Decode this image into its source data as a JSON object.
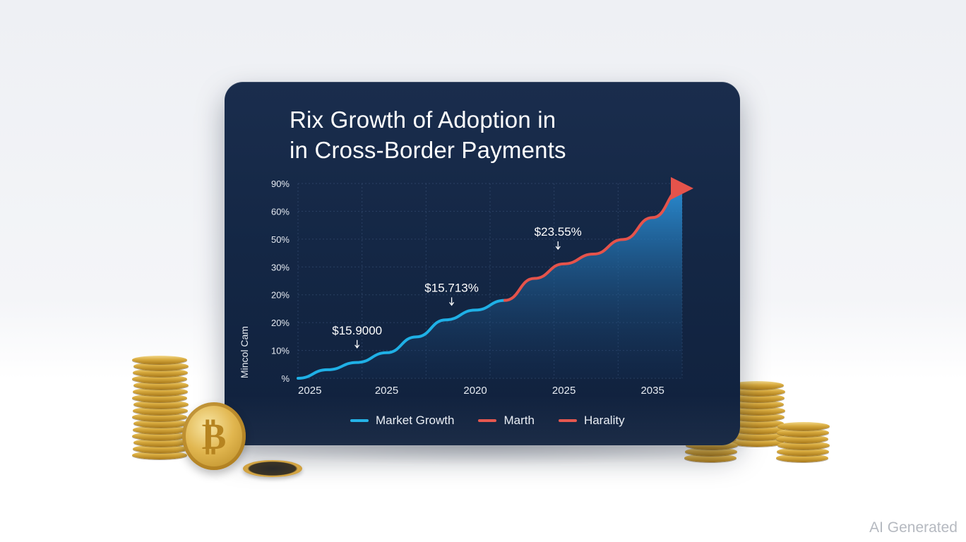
{
  "chart_data": {
    "type": "line",
    "title_lines": [
      "Rix Growth of  Adoption in",
      "in Cross-Border Payments"
    ],
    "ylabel": "Mincol Cam",
    "xlabel": "",
    "y_ticks": [
      "90%",
      "60%",
      "50%",
      "30%",
      "20%",
      "20%",
      "10%",
      "%"
    ],
    "x_ticks": [
      "2025",
      "2025",
      "2020",
      "2025",
      "2035"
    ],
    "series": [
      {
        "name": "Market Growth",
        "color": "#1fb0e6",
        "values": [
          0,
          3.5,
          6.5,
          10.5,
          17,
          24,
          28,
          32
        ]
      },
      {
        "name": "Marth",
        "color": "#e5534b",
        "values": [
          null,
          null,
          null,
          null,
          null,
          null,
          null,
          32,
          41,
          47,
          51,
          57,
          66,
          78
        ]
      }
    ],
    "x_positions": [
      0,
      0.5,
      1,
      1.5,
      2,
      2.5,
      3,
      3.5,
      4,
      4.5,
      5,
      5.5,
      6,
      6.5
    ],
    "annotations": [
      {
        "text": "$15.9000",
        "x": 1,
        "y": 10.5
      },
      {
        "text": "$15.713%",
        "x": 2.6,
        "y": 28
      },
      {
        "text": "$23.55%",
        "x": 4.4,
        "y": 51
      }
    ],
    "legend": [
      "Market Growth",
      "Marth",
      "Harality"
    ],
    "legend_colors": [
      "#1fb0e6",
      "#e5534b",
      "#e5534b"
    ],
    "legend_position": "bottom",
    "grid": true
  },
  "watermark": "AI Generated"
}
